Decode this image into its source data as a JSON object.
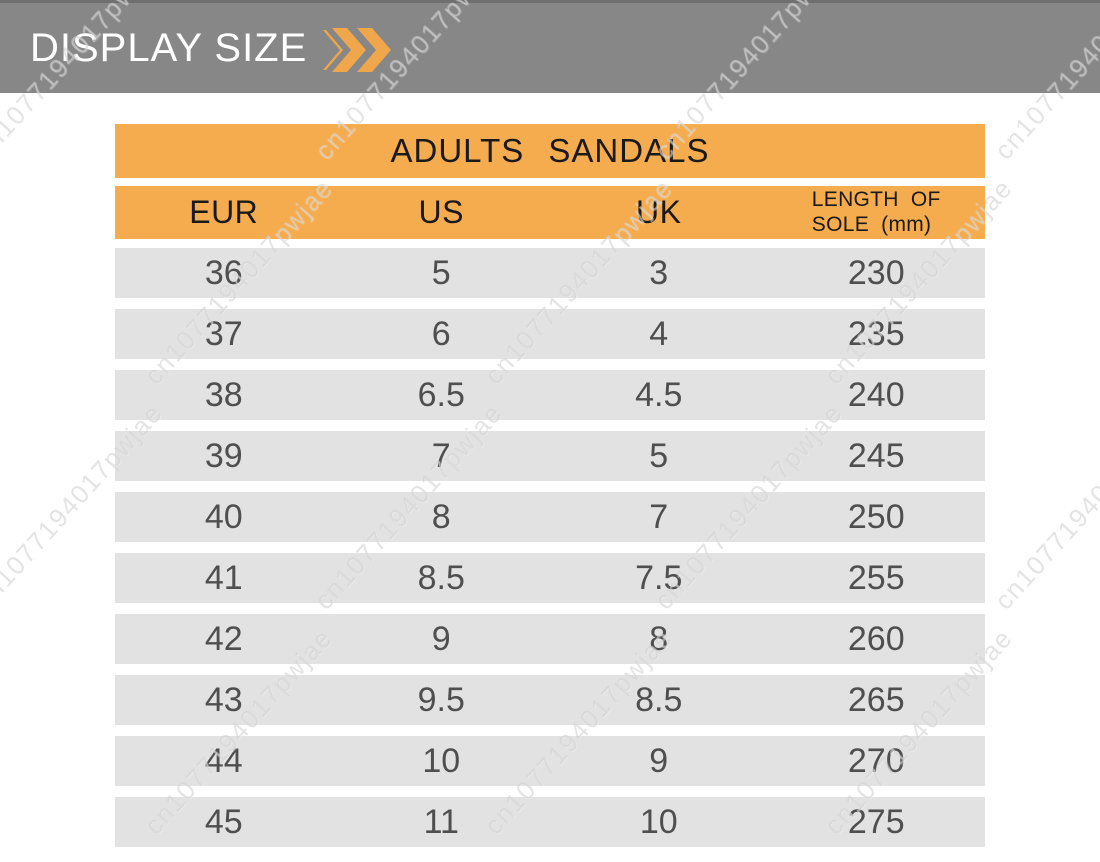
{
  "banner": {
    "title": "DISPLAY SIZE",
    "icon": "double-chevron-right"
  },
  "chart_data": {
    "type": "table",
    "title": "ADULTS SANDALS",
    "columns": [
      "EUR",
      "US",
      "UK",
      "LENGTH OF SOLE (mm)"
    ],
    "length_header": {
      "line1": "LENGTH OF",
      "line2": "SOLE (mm)"
    },
    "rows": [
      [
        "36",
        "5",
        "3",
        "230"
      ],
      [
        "37",
        "6",
        "4",
        "235"
      ],
      [
        "38",
        "6.5",
        "4.5",
        "240"
      ],
      [
        "39",
        "7",
        "5",
        "245"
      ],
      [
        "40",
        "8",
        "7",
        "250"
      ],
      [
        "41",
        "8.5",
        "7.5",
        "255"
      ],
      [
        "42",
        "9",
        "8",
        "260"
      ],
      [
        "43",
        "9.5",
        "8.5",
        "265"
      ],
      [
        "44",
        "10",
        "9",
        "270"
      ],
      [
        "45",
        "11",
        "10",
        "275"
      ]
    ]
  },
  "watermark": {
    "text": "cn1077194017pwjae"
  },
  "colors": {
    "accent_orange": "#F5AC4E",
    "banner_gray": "#878787",
    "banner_edge_gray": "#6f6f6f",
    "row_gray": "#E2E2E2",
    "number_text": "#4f4f4f",
    "header_text": "#1a1a1a",
    "banner_text": "#ffffff"
  }
}
